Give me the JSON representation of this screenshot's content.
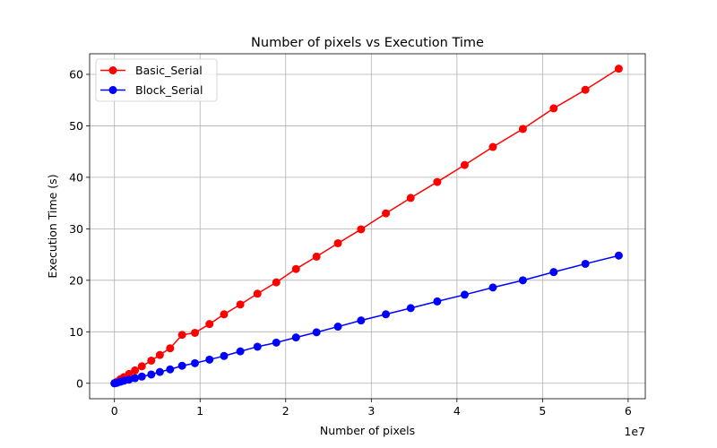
{
  "chart_data": {
    "type": "line",
    "title": "Number of pixels vs Execution Time",
    "xlabel": "Number of pixels",
    "ylabel": "Execution Time (s)",
    "x_offset_label": "1e7",
    "x_scale": 10000000,
    "xlim": [
      -2900000,
      62000000
    ],
    "ylim": [
      -3.0,
      64.0
    ],
    "x_ticks": [
      0,
      10000000,
      20000000,
      30000000,
      40000000,
      50000000,
      60000000
    ],
    "x_tick_labels": [
      "0",
      "1",
      "2",
      "3",
      "4",
      "5",
      "6"
    ],
    "y_ticks": [
      0,
      10,
      20,
      30,
      40,
      50,
      60
    ],
    "y_tick_labels": [
      "0",
      "10",
      "20",
      "30",
      "40",
      "50",
      "60"
    ],
    "grid": true,
    "legend_position": "top-left",
    "x": [
      0,
      100000,
      300000,
      700000,
      1100000,
      1700000,
      2400000,
      3200000,
      4300000,
      5300000,
      6500000,
      7900000,
      9400000,
      11100000,
      12800000,
      14700000,
      16700000,
      18900000,
      21200000,
      23600000,
      26100000,
      28800000,
      31700000,
      34600000,
      37700000,
      40900000,
      44200000,
      47700000,
      51300000,
      55000000,
      58900000
    ],
    "series": [
      {
        "name": "Basic_Serial",
        "color": "#ff0000",
        "values": [
          0,
          0.1,
          0.3,
          0.8,
          1.2,
          1.8,
          2.5,
          3.3,
          4.4,
          5.5,
          6.8,
          9.4,
          9.8,
          11.5,
          13.4,
          15.3,
          17.4,
          19.6,
          22.2,
          24.6,
          27.2,
          29.9,
          33.0,
          36.0,
          39.1,
          42.4,
          45.9,
          49.4,
          53.4,
          57.0,
          61.1
        ]
      },
      {
        "name": "Block_Serial",
        "color": "#0000ff",
        "values": [
          0,
          0.05,
          0.1,
          0.3,
          0.5,
          0.7,
          1.0,
          1.3,
          1.7,
          2.2,
          2.7,
          3.4,
          3.9,
          4.6,
          5.3,
          6.2,
          7.1,
          7.9,
          8.9,
          9.9,
          11.0,
          12.2,
          13.4,
          14.6,
          15.9,
          17.2,
          18.6,
          20.0,
          21.6,
          23.2,
          24.8
        ]
      }
    ]
  }
}
